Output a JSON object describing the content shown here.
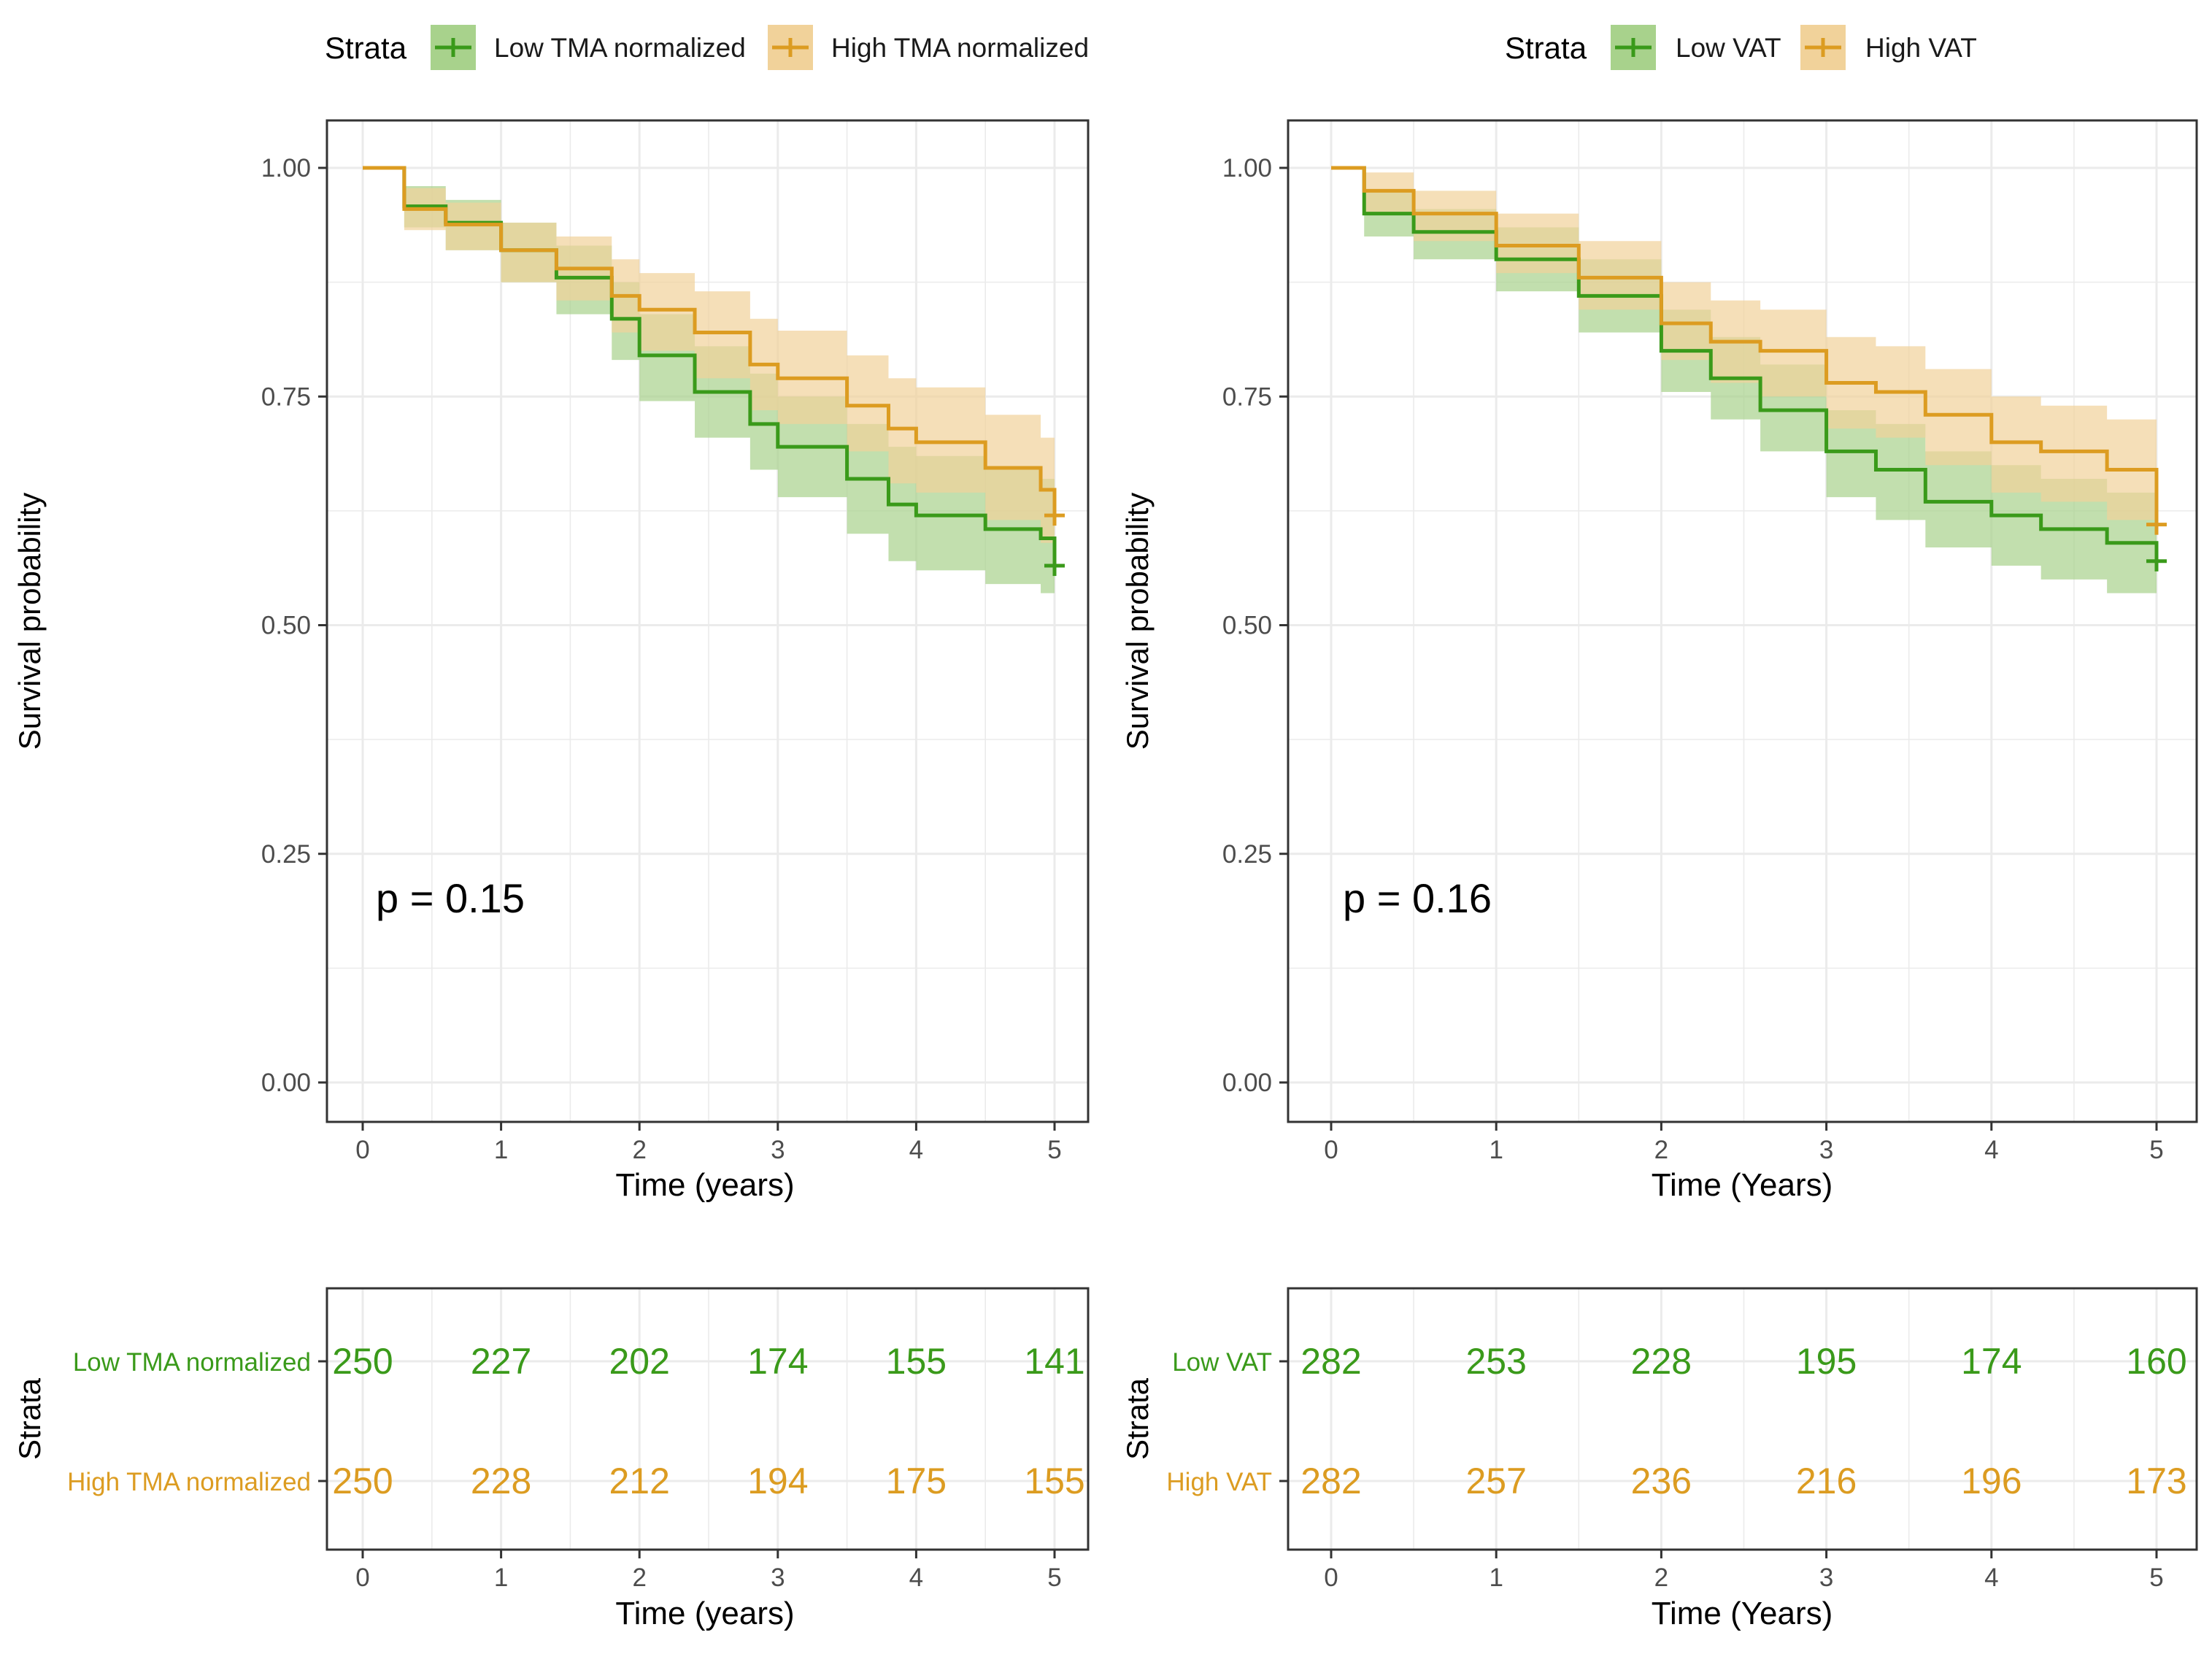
{
  "colors": {
    "low": "#3a9a1a",
    "high": "#dc9c21",
    "low_fill": "#a8d28c",
    "high_fill": "#f1d29a",
    "grid": "#ebebeb",
    "border": "#333333",
    "tick_text": "#4d4d4d",
    "text": "#000000"
  },
  "chart_data": [
    {
      "type": "line",
      "subtype": "kaplan-meier",
      "legend_title": "Strata",
      "legend_position": "top",
      "xlabel": "Time (years)",
      "ylabel": "Survival probability",
      "xlim": [
        0,
        5
      ],
      "ylim": [
        0,
        1
      ],
      "x_ticks": [
        "0",
        "1",
        "2",
        "3",
        "4",
        "5"
      ],
      "y_ticks": [
        "0.00",
        "0.25",
        "0.50",
        "0.75",
        "1.00"
      ],
      "pvalue": "p = 0.15",
      "series": [
        {
          "name": "Low TMA normalized",
          "color_key": "low",
          "x": [
            0,
            0.3,
            0.6,
            1.0,
            1.4,
            1.8,
            2.0,
            2.4,
            2.8,
            3.0,
            3.5,
            3.8,
            4.0,
            4.5,
            4.9,
            5.0
          ],
          "y": [
            1.0,
            0.958,
            0.94,
            0.91,
            0.88,
            0.835,
            0.795,
            0.755,
            0.72,
            0.695,
            0.66,
            0.632,
            0.62,
            0.605,
            0.595,
            0.565
          ],
          "lower": [
            1.0,
            0.935,
            0.91,
            0.875,
            0.84,
            0.79,
            0.745,
            0.705,
            0.67,
            0.64,
            0.6,
            0.57,
            0.56,
            0.545,
            0.535,
            0.51
          ],
          "upper": [
            1.0,
            0.98,
            0.965,
            0.94,
            0.915,
            0.875,
            0.84,
            0.805,
            0.775,
            0.75,
            0.72,
            0.695,
            0.685,
            0.67,
            0.66,
            0.62
          ]
        },
        {
          "name": "High TMA normalized",
          "color_key": "high",
          "x": [
            0,
            0.3,
            0.6,
            1.0,
            1.4,
            1.8,
            2.0,
            2.4,
            2.8,
            3.0,
            3.5,
            3.8,
            4.0,
            4.5,
            4.9,
            5.0
          ],
          "y": [
            1.0,
            0.955,
            0.938,
            0.91,
            0.89,
            0.86,
            0.845,
            0.82,
            0.785,
            0.77,
            0.74,
            0.715,
            0.7,
            0.672,
            0.648,
            0.62
          ],
          "lower": [
            1.0,
            0.932,
            0.91,
            0.875,
            0.855,
            0.82,
            0.8,
            0.77,
            0.735,
            0.72,
            0.69,
            0.655,
            0.645,
            0.615,
            0.59,
            0.565
          ],
          "upper": [
            1.0,
            0.978,
            0.962,
            0.94,
            0.925,
            0.9,
            0.885,
            0.865,
            0.835,
            0.822,
            0.795,
            0.77,
            0.76,
            0.73,
            0.705,
            0.68
          ]
        }
      ],
      "risk_table": {
        "ylabel": "Strata",
        "xlabel": "Time (years)",
        "times": [
          0,
          1,
          2,
          3,
          4,
          5
        ],
        "rows": [
          {
            "name": "Low TMA normalized",
            "color_key": "low",
            "counts": [
              "250",
              "227",
              "202",
              "174",
              "155",
              "141"
            ]
          },
          {
            "name": "High TMA normalized",
            "color_key": "high",
            "counts": [
              "250",
              "228",
              "212",
              "194",
              "175",
              "155"
            ]
          }
        ]
      }
    },
    {
      "type": "line",
      "subtype": "kaplan-meier",
      "legend_title": "Strata",
      "legend_position": "top",
      "xlabel": "Time (Years)",
      "ylabel": "Survival probability",
      "xlim": [
        0,
        5
      ],
      "ylim": [
        0,
        1
      ],
      "x_ticks": [
        "0",
        "1",
        "2",
        "3",
        "4",
        "5"
      ],
      "y_ticks": [
        "0.00",
        "0.25",
        "0.50",
        "0.75",
        "1.00"
      ],
      "pvalue": "p = 0.16",
      "series": [
        {
          "name": "Low VAT",
          "color_key": "low",
          "x": [
            0,
            0.2,
            0.5,
            1.0,
            1.5,
            2.0,
            2.3,
            2.6,
            3.0,
            3.3,
            3.6,
            4.0,
            4.3,
            4.7,
            5.0
          ],
          "y": [
            1.0,
            0.95,
            0.93,
            0.9,
            0.86,
            0.8,
            0.77,
            0.735,
            0.69,
            0.67,
            0.635,
            0.62,
            0.605,
            0.59,
            0.57
          ],
          "lower": [
            1.0,
            0.925,
            0.9,
            0.865,
            0.82,
            0.755,
            0.725,
            0.69,
            0.64,
            0.615,
            0.585,
            0.565,
            0.55,
            0.535,
            0.52
          ],
          "upper": [
            1.0,
            0.975,
            0.955,
            0.935,
            0.9,
            0.845,
            0.815,
            0.785,
            0.735,
            0.72,
            0.69,
            0.675,
            0.66,
            0.645,
            0.625
          ]
        },
        {
          "name": "High VAT",
          "color_key": "high",
          "x": [
            0,
            0.2,
            0.5,
            1.0,
            1.5,
            2.0,
            2.3,
            2.6,
            3.0,
            3.3,
            3.6,
            4.0,
            4.3,
            4.7,
            5.0
          ],
          "y": [
            1.0,
            0.975,
            0.95,
            0.915,
            0.88,
            0.83,
            0.81,
            0.8,
            0.765,
            0.755,
            0.73,
            0.7,
            0.69,
            0.67,
            0.61
          ],
          "lower": [
            1.0,
            0.95,
            0.92,
            0.885,
            0.845,
            0.79,
            0.765,
            0.75,
            0.715,
            0.705,
            0.675,
            0.645,
            0.635,
            0.615,
            0.555
          ],
          "upper": [
            1.0,
            0.995,
            0.975,
            0.95,
            0.92,
            0.875,
            0.855,
            0.845,
            0.815,
            0.805,
            0.78,
            0.75,
            0.74,
            0.725,
            0.68
          ]
        }
      ],
      "risk_table": {
        "ylabel": "Strata",
        "xlabel": "Time (Years)",
        "times": [
          0,
          1,
          2,
          3,
          4,
          5
        ],
        "rows": [
          {
            "name": "Low VAT",
            "color_key": "low",
            "counts": [
              "282",
              "253",
              "228",
              "195",
              "174",
              "160"
            ]
          },
          {
            "name": "High VAT",
            "color_key": "high",
            "counts": [
              "282",
              "257",
              "236",
              "216",
              "196",
              "173"
            ]
          }
        ]
      }
    }
  ]
}
